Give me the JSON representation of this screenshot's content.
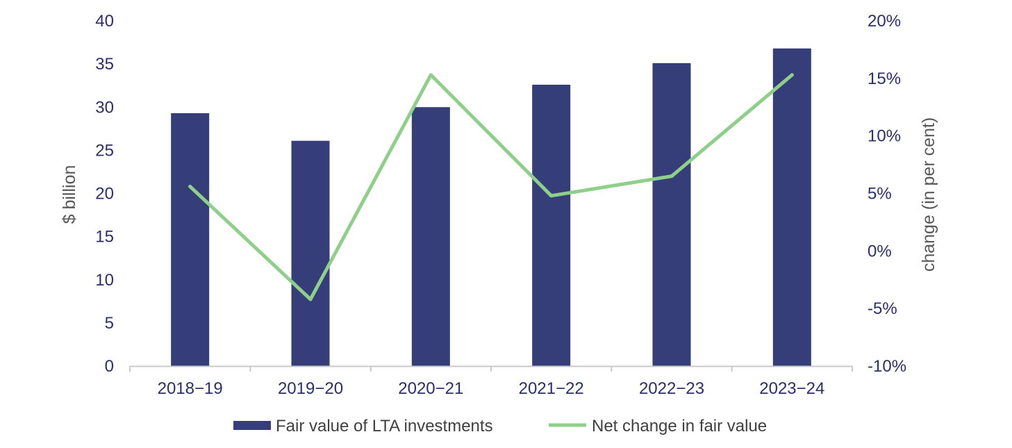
{
  "colors": {
    "bar": "#353e78",
    "line": "#8ecf8a",
    "axis_line": "#c8c8c8",
    "tick_text": "#2b2f6b",
    "title_text": "#595959"
  },
  "chart_data": {
    "type": "bar",
    "categories": [
      "2018−19",
      "2019−20",
      "2020−21",
      "2021−22",
      "2022−23",
      "2023−24"
    ],
    "series": [
      {
        "name": "Fair value of LTA investments",
        "type": "bar",
        "axis": "left",
        "values": [
          29.3,
          26.1,
          30.0,
          32.6,
          35.1,
          36.8
        ]
      },
      {
        "name": "Net change in fair value",
        "type": "line",
        "axis": "right",
        "values": [
          5.6,
          -4.2,
          15.3,
          4.8,
          6.5,
          15.3
        ]
      }
    ],
    "ylabel": "$ billion",
    "y2label": "change (in per cent)",
    "ylim": [
      0,
      40
    ],
    "y2lim": [
      -10,
      20
    ],
    "yticks": [
      "0",
      "5",
      "10",
      "15",
      "20",
      "25",
      "30",
      "35",
      "40"
    ],
    "y2ticks": [
      "-10%",
      "-5%",
      "0%",
      "5%",
      "10%",
      "15%",
      "20%"
    ],
    "grid": false,
    "legend": "bottom-center"
  }
}
